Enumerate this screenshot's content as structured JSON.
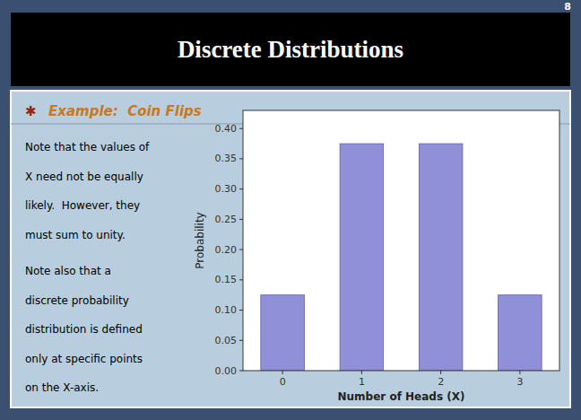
{
  "chart_data": {
    "type": "bar",
    "title": "Discrete Distributions",
    "subtitle": "Example:  Coin Flips",
    "annotations": [
      "8",
      "✱",
      "Note that the values of",
      "X need not be equally",
      "likely.  However, they",
      "must sum to unity.",
      "Note also that a",
      "discrete probability",
      "distribution is defined",
      "only at specific points",
      "on the X-axis."
    ],
    "categories": [
      "0",
      "1",
      "2",
      "3"
    ],
    "values": [
      0.125,
      0.375,
      0.375,
      0.125
    ],
    "color": "#9090d8",
    "xlabel": "Number of Heads (X)",
    "ylabel": "Probability",
    "ylim": [
      0,
      0.43
    ],
    "yticks": [
      {
        "value": 0.0,
        "label": "0.00"
      },
      {
        "value": 0.05,
        "label": "0.05"
      },
      {
        "value": 0.1,
        "label": "0.10"
      },
      {
        "value": 0.15,
        "label": "0.15"
      },
      {
        "value": 0.2,
        "label": "0.20"
      },
      {
        "value": 0.25,
        "label": "0.25"
      },
      {
        "value": 0.3,
        "label": "0.30"
      },
      {
        "value": 0.35,
        "label": "0.35"
      },
      {
        "value": 0.4,
        "label": "0.40"
      }
    ],
    "grid": false
  }
}
